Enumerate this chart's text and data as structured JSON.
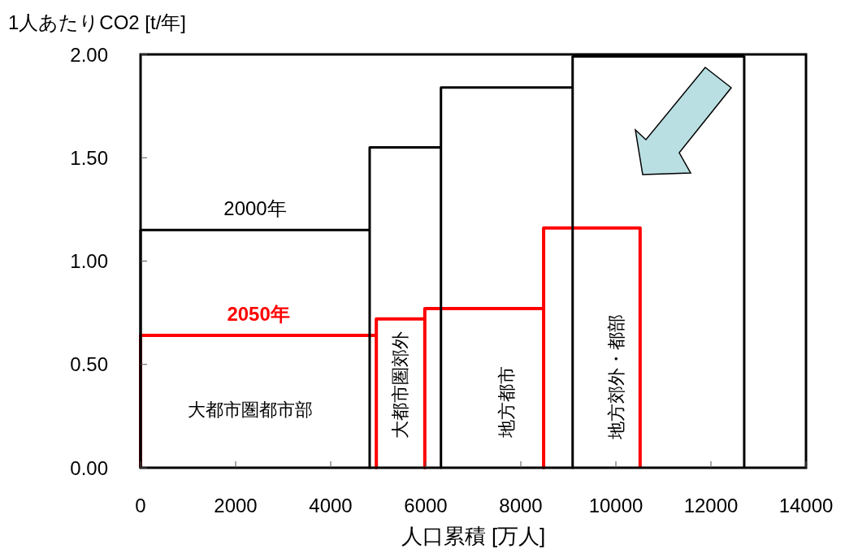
{
  "chart_data": {
    "type": "line",
    "xlabel": "人口累積 [万人]",
    "ylabel": "1人あたりCO2 [t/年]",
    "xlim": [
      0,
      14000
    ],
    "xticks": [
      0,
      2000,
      4000,
      6000,
      8000,
      10000,
      12000,
      14000
    ],
    "ylim": [
      0,
      2
    ],
    "yticks": [
      {
        "value": 0,
        "label": "0.00"
      },
      {
        "value": 0.5,
        "label": "0.50"
      },
      {
        "value": 1,
        "label": "1.00"
      },
      {
        "value": 1.5,
        "label": "1.50"
      },
      {
        "value": 2,
        "label": "2.00"
      }
    ],
    "series": [
      {
        "name": "2050年",
        "color": "#ff0000",
        "x": [
          0,
          0,
          4960,
          4960,
          4960,
          5980,
          5980,
          5980,
          8480,
          8480,
          8480,
          10510,
          10510
        ],
        "values": [
          0,
          0.64,
          0.64,
          0,
          0.72,
          0.72,
          0,
          0.77,
          0.77,
          0,
          1.16,
          1.16,
          0
        ]
      },
      {
        "name": "2000年",
        "color": "#000000",
        "x": [
          0,
          0,
          4820,
          4820,
          4820,
          6320,
          6320,
          6320,
          9090,
          9090,
          9090,
          12700,
          12700
        ],
        "values": [
          0,
          1.15,
          1.15,
          0,
          1.55,
          1.55,
          0,
          1.84,
          1.84,
          0,
          1.99,
          1.99,
          0
        ]
      }
    ],
    "annotations": [
      "大都市圏都市部",
      "大都市圏郊外",
      "地方都市",
      "地方郊外・都部"
    ],
    "grid": false,
    "legend": false,
    "marker": "none",
    "line_style": "solid"
  }
}
